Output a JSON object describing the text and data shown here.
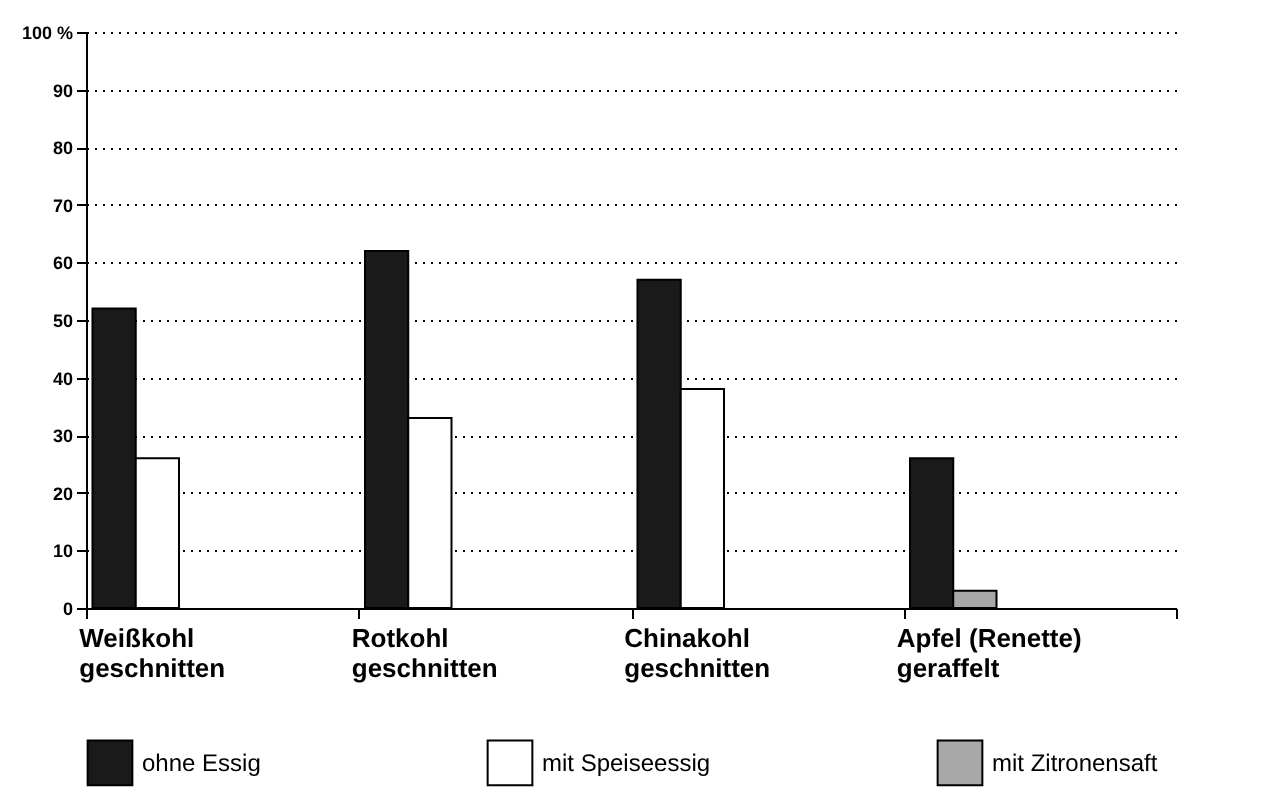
{
  "chart_data": {
    "type": "bar",
    "categories": [
      "Weißkohl\ngeschnitten",
      "Rotkohl\ngeschnitten",
      "Chinakohl\ngeschnitten",
      "Apfel (Renette)\ngeraffelt"
    ],
    "series": [
      {
        "name": "ohne Essig",
        "color": "#1a1a1a",
        "values": [
          52,
          62,
          57,
          26
        ]
      },
      {
        "name": "mit Speiseessig",
        "color": "#ffffff",
        "values": [
          26,
          33,
          38,
          null
        ]
      },
      {
        "name": "mit Zitronensaft",
        "color": "#a8a8a8",
        "values": [
          null,
          null,
          null,
          3
        ]
      }
    ],
    "ylim": [
      0,
      100
    ],
    "yticks": [
      0,
      10,
      20,
      30,
      40,
      50,
      60,
      70,
      80,
      90,
      {
        "value": 100,
        "label": "100 %"
      }
    ],
    "grid": "y",
    "legend": "bottom"
  }
}
